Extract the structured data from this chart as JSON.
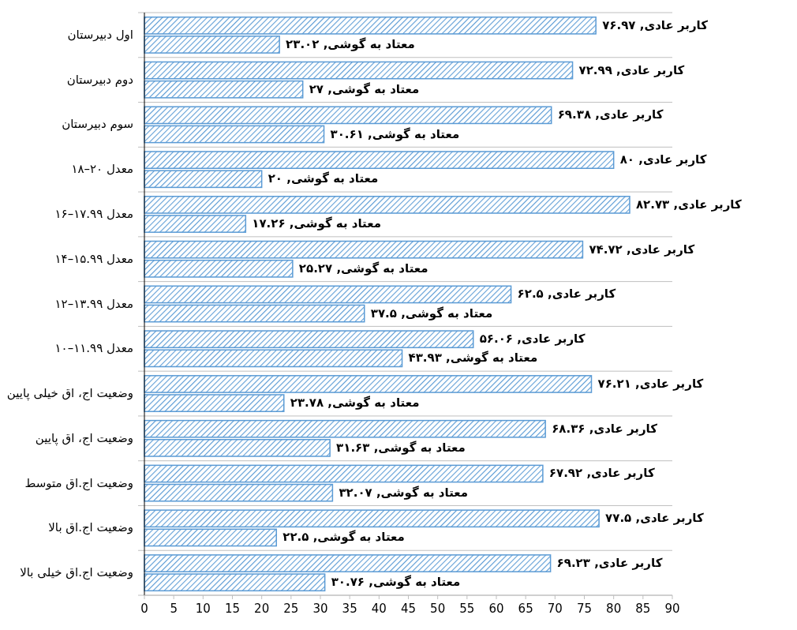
{
  "chart_data": {
    "type": "bar",
    "orientation": "horizontal",
    "categories": [
      "اول دبیرستان",
      "دوم دبیرستان",
      "سوم دبیرستان",
      "معدل ۲۰–۱۸",
      "معدل ۱۷.۹۹–۱۶",
      "معدل ۱۵.۹۹–۱۴",
      "معدل ۱۳.۹۹–۱۲",
      "معدل ۱۱.۹۹–۱۰",
      "وضعیت اج، اق خیلی پایین",
      "وضعیت اج، اق پایین",
      "وضعیت اج.اق متوسط",
      "وضعیت اج.اق بالا",
      "وضعیت اج.اق خیلی بالا"
    ],
    "series": [
      {
        "color": "#5b9bd5",
        "values": [
          76.97,
          72.99,
          69.38,
          80,
          82.73,
          74.72,
          62.5,
          56.06,
          76.21,
          68.36,
          67.92,
          77.5,
          69.23
        ],
        "value_labels": [
          "کاربر عادی, ۷۶.۹۷",
          "کاربر عادی, ۷۲.۹۹",
          "کاربر عادی, ۶۹.۳۸",
          "کاربر عادی, ۸۰",
          "کاربر عادی, ۸۲.۷۳",
          "کاربر عادی, ۷۴.۷۲",
          "کاربر عادی, ۶۲.۵",
          "کاربر عادی, ۵۶.۰۶",
          "کاربر عادی, ۷۶.۲۱",
          "کاربر عادی, ۶۸.۳۶",
          "کاربر عادی, ۶۷.۹۲",
          "کاربر عادی, ۷۷.۵",
          "کاربر عادی, ۶۹.۲۳"
        ]
      },
      {
        "color": "#5b9bd5",
        "values": [
          23.02,
          27,
          30.61,
          20,
          17.26,
          25.27,
          37.5,
          43.93,
          23.78,
          31.63,
          32.07,
          22.5,
          30.76
        ],
        "value_labels": [
          "معتاد به گوشی, ۲۳.۰۲",
          "معتاد به گوشی, ۲۷",
          "معتاد به گوشی, ۳۰.۶۱",
          "معتاد به گوشی, ۲۰",
          "معتاد به گوشی, ۱۷.۲۶",
          "معتاد به گوشی, ۲۵.۲۷",
          "معتاد به گوشی, ۳۷.۵",
          "معتاد به گوشی, ۴۳.۹۳",
          "معتاد به گوشی, ۲۳.۷۸",
          "معتاد به گوشی, ۳۱.۶۳",
          "معتاد به گوشی, ۳۲.۰۷",
          "معتاد به گوشی, ۲۲.۵",
          "معتاد به گوشی, ۳۰.۷۶"
        ]
      }
    ],
    "xlim": [
      0,
      90
    ],
    "xticks": [
      0,
      5,
      10,
      15,
      20,
      25,
      30,
      35,
      40,
      45,
      50,
      55,
      60,
      65,
      70,
      75,
      80,
      85,
      90
    ]
  }
}
